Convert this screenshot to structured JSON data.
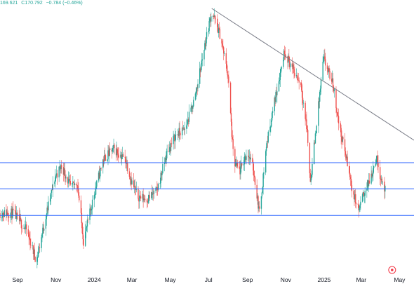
{
  "header": {
    "values": [
      "169.621",
      "C170.792",
      "−0.784 (−0.46%)"
    ]
  },
  "colors": {
    "up": "#26a69a",
    "down": "#ef5350",
    "support_line": "#2962ff",
    "trend_line": "#787b86",
    "axis_text": "#131722",
    "marker": "#f23645"
  },
  "chart_data": {
    "type": "candlestick",
    "title": "",
    "xlabel": "",
    "ylabel": "",
    "x_ticks": [
      "Sep",
      "Nov",
      "2024",
      "Mar",
      "May",
      "Jul",
      "Sep",
      "Nov",
      "2025",
      "Mar",
      "May"
    ],
    "x_tick_dates": [
      "2023-09-01",
      "2023-11-01",
      "2024-01-01",
      "2024-03-01",
      "2024-05-01",
      "2024-07-01",
      "2024-09-01",
      "2024-11-01",
      "2025-01-01",
      "2025-03-01",
      "2025-05-01"
    ],
    "x_range": [
      "2023-08-04",
      "2025-05-24"
    ],
    "y_range": [
      0.2,
      9.8
    ],
    "horizontal_levels": [
      4.2,
      3.27,
      2.32
    ],
    "trendline": {
      "start": [
        "2024-07-06",
        9.7
      ],
      "end": [
        "2025-05-24",
        5.0
      ]
    },
    "marker_icon": "flag-circle-icon",
    "price_path": [
      [
        "2023-08-04",
        2.4
      ],
      [
        "2023-08-25",
        2.4
      ],
      [
        "2023-09-15",
        1.8
      ],
      [
        "2023-10-01",
        0.7
      ],
      [
        "2023-10-15",
        2.2
      ],
      [
        "2023-10-31",
        3.7
      ],
      [
        "2023-11-10",
        4.1
      ],
      [
        "2023-11-25",
        3.3
      ],
      [
        "2023-12-05",
        3.5
      ],
      [
        "2023-12-15",
        1.4
      ],
      [
        "2024-01-01",
        3.1
      ],
      [
        "2024-01-15",
        4.3
      ],
      [
        "2024-02-01",
        4.7
      ],
      [
        "2024-02-20",
        4.3
      ],
      [
        "2024-03-01",
        3.5
      ],
      [
        "2024-03-10",
        3.0
      ],
      [
        "2024-03-25",
        2.9
      ],
      [
        "2024-04-10",
        3.2
      ],
      [
        "2024-04-25",
        4.5
      ],
      [
        "2024-05-10",
        5.2
      ],
      [
        "2024-05-25",
        5.4
      ],
      [
        "2024-06-10",
        6.6
      ],
      [
        "2024-06-25",
        8.4
      ],
      [
        "2024-07-06",
        9.6
      ],
      [
        "2024-07-20",
        8.7
      ],
      [
        "2024-08-01",
        7.3
      ],
      [
        "2024-08-10",
        4.2
      ],
      [
        "2024-08-20",
        3.9
      ],
      [
        "2024-09-01",
        4.6
      ],
      [
        "2024-09-10",
        4.0
      ],
      [
        "2024-09-20",
        2.4
      ],
      [
        "2024-10-01",
        4.8
      ],
      [
        "2024-10-15",
        6.5
      ],
      [
        "2024-10-30",
        8.2
      ],
      [
        "2024-11-10",
        7.6
      ],
      [
        "2024-11-25",
        7.0
      ],
      [
        "2024-12-05",
        5.3
      ],
      [
        "2024-12-10",
        3.5
      ],
      [
        "2024-12-20",
        5.6
      ],
      [
        "2024-12-31",
        7.9
      ],
      [
        "2025-01-15",
        7.0
      ],
      [
        "2025-01-25",
        5.5
      ],
      [
        "2025-02-05",
        4.4
      ],
      [
        "2025-02-15",
        3.2
      ],
      [
        "2025-02-25",
        2.5
      ],
      [
        "2025-03-05",
        3.1
      ],
      [
        "2025-03-15",
        3.6
      ],
      [
        "2025-03-25",
        4.4
      ],
      [
        "2025-04-01",
        3.7
      ],
      [
        "2025-04-08",
        3.2
      ]
    ]
  }
}
